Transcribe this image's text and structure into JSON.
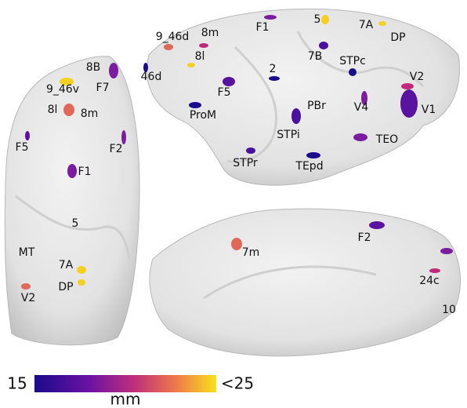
{
  "lateral_view": {
    "labels": [
      "F1",
      "5",
      "7A",
      "DP",
      "9_46d",
      "8m",
      "8l",
      "7B",
      "STPc",
      "46d",
      "2",
      "V2",
      "F5",
      "PBr",
      "V4",
      "V1",
      "ProM",
      "STPi",
      "TEO",
      "STPr",
      "TEpd"
    ]
  },
  "dorsal_view": {
    "labels": [
      "8B",
      "F7",
      "9_46v",
      "8l",
      "8m",
      "F5",
      "F2",
      "F1",
      "5",
      "MT",
      "7A",
      "DP",
      "V2"
    ]
  },
  "medial_view": {
    "labels": [
      "F2",
      "7m",
      "24c",
      "10"
    ]
  },
  "colorbar": {
    "min_label": "15",
    "max_label": "<25",
    "unit": "mm"
  }
}
